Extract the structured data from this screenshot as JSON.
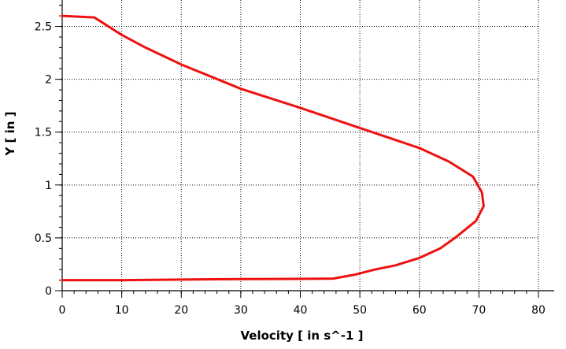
{
  "chart_data": {
    "type": "line",
    "title": "",
    "xlabel": "Velocity [ in s^-1 ]",
    "ylabel": "Y [ in ]",
    "xlim": [
      0,
      80
    ],
    "ylim": [
      0,
      2.75
    ],
    "x_ticks": [
      "0",
      "10",
      "20",
      "30",
      "40",
      "50",
      "60",
      "70",
      "80"
    ],
    "y_ticks": [
      "0",
      "0.5",
      "1",
      "1.5",
      "2",
      "2.5"
    ],
    "grid": true,
    "series": [
      {
        "color": "#ee1111",
        "points": [
          {
            "x": 0.0,
            "y": 0.1
          },
          {
            "x": 10.0,
            "y": 0.1
          },
          {
            "x": 20.0,
            "y": 0.105
          },
          {
            "x": 30.0,
            "y": 0.11
          },
          {
            "x": 40.0,
            "y": 0.112
          },
          {
            "x": 45.5,
            "y": 0.115
          },
          {
            "x": 49.0,
            "y": 0.15
          },
          {
            "x": 52.5,
            "y": 0.2
          },
          {
            "x": 56.0,
            "y": 0.24
          },
          {
            "x": 60.0,
            "y": 0.31
          },
          {
            "x": 63.5,
            "y": 0.4
          },
          {
            "x": 66.0,
            "y": 0.5
          },
          {
            "x": 69.5,
            "y": 0.66
          },
          {
            "x": 70.8,
            "y": 0.8
          },
          {
            "x": 70.5,
            "y": 0.93
          },
          {
            "x": 69.0,
            "y": 1.08
          },
          {
            "x": 65.0,
            "y": 1.22
          },
          {
            "x": 60.0,
            "y": 1.35
          },
          {
            "x": 50.0,
            "y": 1.54
          },
          {
            "x": 40.0,
            "y": 1.73
          },
          {
            "x": 30.0,
            "y": 1.91
          },
          {
            "x": 20.0,
            "y": 2.14
          },
          {
            "x": 14.0,
            "y": 2.3
          },
          {
            "x": 10.0,
            "y": 2.42
          },
          {
            "x": 5.4,
            "y": 2.585
          },
          {
            "x": 0.0,
            "y": 2.6
          }
        ]
      }
    ]
  }
}
